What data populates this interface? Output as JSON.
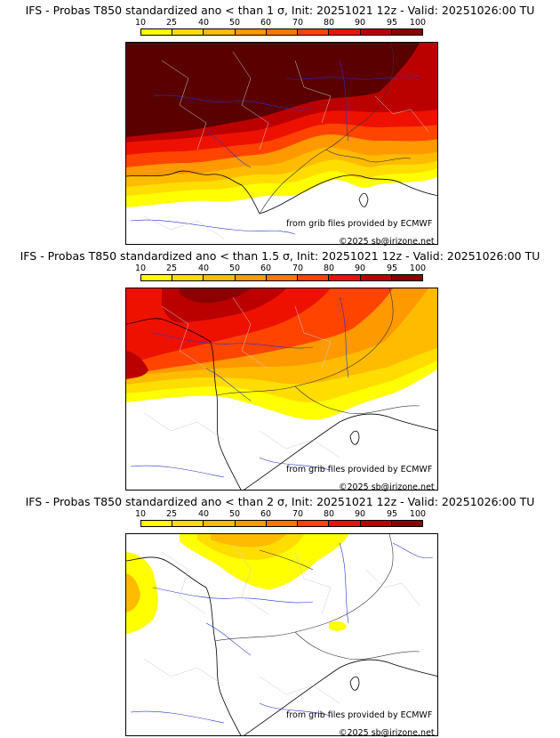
{
  "legend": {
    "labels": [
      "10",
      "25",
      "40",
      "50",
      "60",
      "70",
      "80",
      "90",
      "95",
      "100"
    ],
    "colors": [
      "#ffff00",
      "#ffdd00",
      "#ffbb00",
      "#ff9900",
      "#ff7700",
      "#ff4400",
      "#ee1100",
      "#bb0000",
      "#8b0000",
      "#5a0000"
    ]
  },
  "panels": [
    {
      "title": "IFS - Probas T850  standardized ano < than 1 σ, Init: 20251021 12z - Valid: 20251026:00 TU"
    },
    {
      "title": "IFS - Probas T850  standardized ano < than 1.5 σ, Init: 20251021 12z - Valid: 20251026:00 TU"
    },
    {
      "title": "IFS - Probas T850  standardized ano < than 2 σ, Init: 20251021 12z - Valid: 20251026:00 TU"
    }
  ],
  "credits": {
    "grib": "from grib files provided by ECMWF",
    "copyright": "©2025 sb@irizone.net"
  }
}
